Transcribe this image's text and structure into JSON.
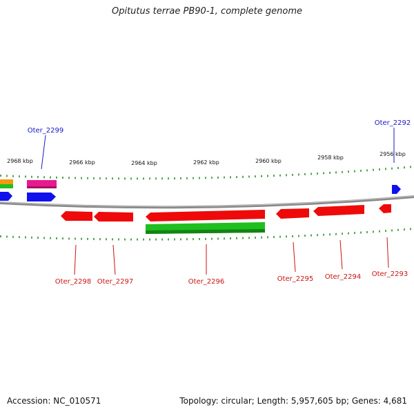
{
  "title": "Opitutus terrae PB90-1, complete genome",
  "footer": {
    "accession": "Accession: NC_010571",
    "topology": "Topology: circular; Length: 5,957,605 bp; Genes: 4,681"
  },
  "colors": {
    "backbone": "#8a8a8a",
    "tick": "#2e8b2e",
    "forward_label": "#1515c8",
    "reverse_label": "#cc1111",
    "red": "#ee0a0a",
    "blue": "#1111ee",
    "green": "#1fbf1f",
    "pink": "#e8198f",
    "orange": "#f29a0f"
  },
  "scale_labels": [
    "2968 kbp",
    "2966 kbp",
    "2964 kbp",
    "2962 kbp",
    "2960 kbp",
    "2958 kbp",
    "2956 kbp"
  ],
  "gene_labels": {
    "top": [
      "Oter_2299",
      "Oter_2292"
    ],
    "bottom": [
      "Oter_2298",
      "Oter_2297",
      "Oter_2296",
      "Oter_2295",
      "Oter_2294",
      "Oter_2293"
    ]
  }
}
